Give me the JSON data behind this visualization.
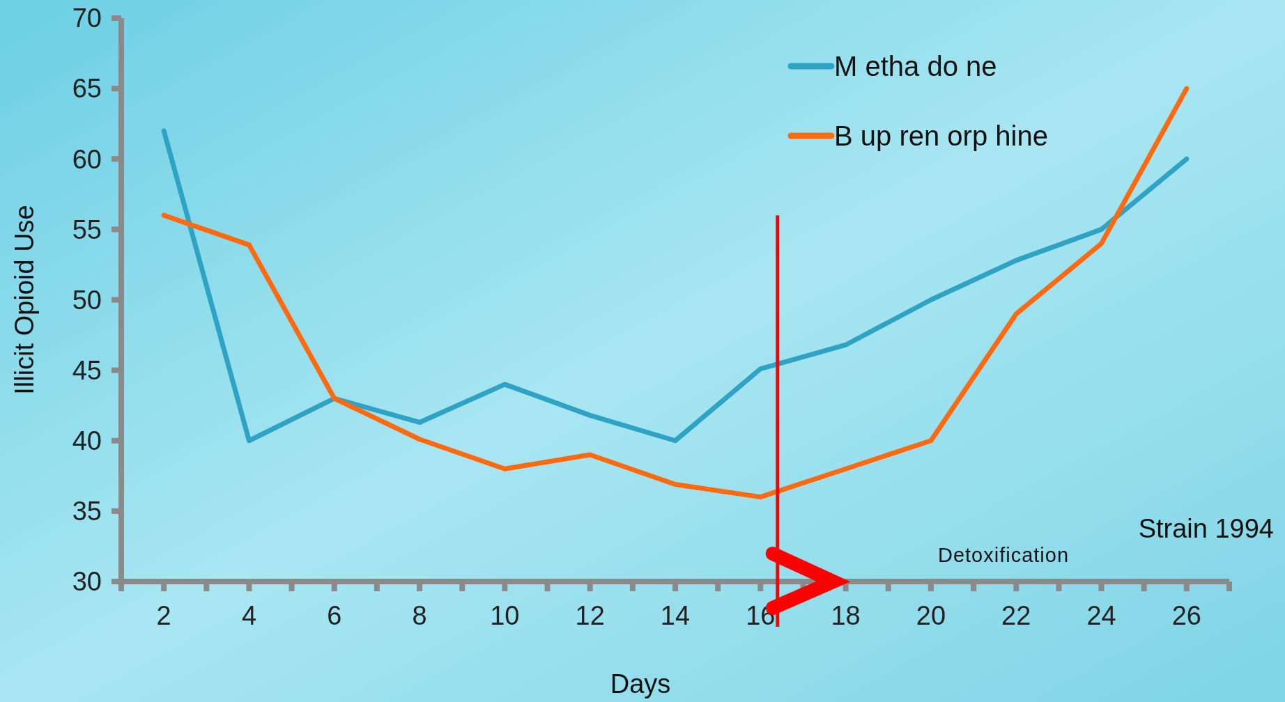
{
  "chart_data": {
    "type": "line",
    "xlabel": "Days",
    "ylabel": "Illicit Opioid Use",
    "x": [
      2,
      4,
      6,
      8,
      10,
      12,
      14,
      16,
      18,
      20,
      22,
      24,
      26
    ],
    "series": [
      {
        "name": "M etha do ne",
        "color": "#2fa3c3",
        "values": [
          62,
          40,
          43,
          41.3,
          44,
          41.8,
          40,
          45.1,
          46.8,
          50,
          52.8,
          55,
          60
        ]
      },
      {
        "name": "B up ren orp hine",
        "color": "#ff6a10",
        "values": [
          56,
          53.9,
          43,
          40.1,
          38,
          39,
          36.9,
          36,
          38,
          40,
          49,
          54,
          65
        ]
      }
    ],
    "xlim": [
      1,
      27
    ],
    "xticks": [
      {
        "value": 1,
        "label": null
      },
      2,
      {
        "value": 3,
        "label": null
      },
      4,
      {
        "value": 5,
        "label": null
      },
      6,
      {
        "value": 7,
        "label": null
      },
      8,
      {
        "value": 9,
        "label": null
      },
      10,
      {
        "value": 11,
        "label": null
      },
      12,
      {
        "value": 13,
        "label": null
      },
      14,
      {
        "value": 15,
        "label": null
      },
      16,
      {
        "value": 17,
        "label": null
      },
      18,
      {
        "value": 19,
        "label": null
      },
      20,
      {
        "value": 21,
        "label": null
      },
      22,
      {
        "value": 23,
        "label": null
      },
      24,
      {
        "value": 25,
        "label": null
      },
      26,
      {
        "value": 27,
        "label": null
      }
    ],
    "ylim": [
      30,
      70
    ],
    "yticks": [
      30,
      35,
      40,
      45,
      50,
      55,
      60,
      65,
      70
    ],
    "ref_lines": [
      {
        "axis": "x",
        "value": 16.4,
        "color": "#ff0000"
      }
    ],
    "annotations": [
      "Detoxification",
      "Strain 1994"
    ],
    "legend": "top right",
    "grid": false,
    "marker": "none",
    "line_style": "solid"
  }
}
